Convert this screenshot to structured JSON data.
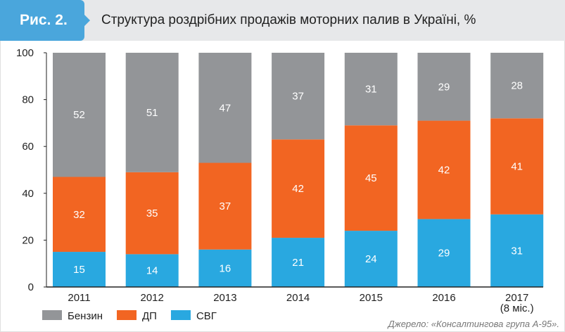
{
  "header": {
    "badge": "Рис. 2.",
    "title": "Структура роздрібних продажів моторних палив в Україні, %"
  },
  "source": "Джерело: «Консалтингова група А-95».",
  "chart_data": {
    "type": "bar",
    "stacked": true,
    "categories": [
      "2011",
      "2012",
      "2013",
      "2014",
      "2015",
      "2016",
      "2017"
    ],
    "category_sublabels": [
      "",
      "",
      "",
      "",
      "",
      "",
      "(8 міс.)"
    ],
    "ylim": [
      0,
      100
    ],
    "yticks": [
      0,
      20,
      40,
      60,
      80,
      100
    ],
    "legend_position": "bottom-left",
    "series": [
      {
        "name": "СВГ",
        "color": "#29a8e0",
        "values": [
          15,
          14,
          16,
          21,
          24,
          29,
          31
        ]
      },
      {
        "name": "ДП",
        "color": "#f26522",
        "values": [
          32,
          35,
          37,
          42,
          45,
          42,
          41
        ]
      },
      {
        "name": "Бензин",
        "color": "#939598",
        "values": [
          52,
          51,
          47,
          37,
          31,
          29,
          28
        ]
      }
    ],
    "legend_order": [
      "Бензин",
      "ДП",
      "СВГ"
    ]
  }
}
